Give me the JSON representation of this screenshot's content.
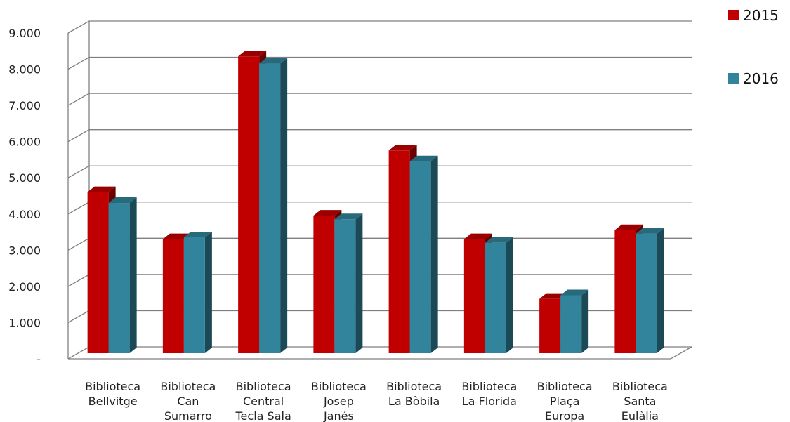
{
  "chart_data": {
    "type": "bar",
    "categories": [
      [
        "Biblioteca",
        "Bellvitge"
      ],
      [
        "Biblioteca",
        "Can",
        "Sumarro"
      ],
      [
        "Biblioteca",
        "Central",
        "Tecla Sala"
      ],
      [
        "Biblioteca",
        "Josep",
        "Janés"
      ],
      [
        "Biblioteca",
        "La Bòbila"
      ],
      [
        "Biblioteca",
        "La Florida"
      ],
      [
        "Biblioteca",
        "Plaça",
        "Europa"
      ],
      [
        "Biblioteca",
        "Santa",
        "Eulàlia"
      ]
    ],
    "series": [
      {
        "name": "2015",
        "color": "#c00000",
        "values": [
          4450,
          3150,
          8200,
          3800,
          5600,
          3150,
          1500,
          3400
        ]
      },
      {
        "name": "2016",
        "color": "#31849b",
        "values": [
          4150,
          3200,
          8000,
          3700,
          5300,
          3050,
          1600,
          3300
        ]
      }
    ],
    "y_ticks": [
      "-",
      "1.000",
      "2.000",
      "3.000",
      "4.000",
      "5.000",
      "6.000",
      "7.000",
      "8.000",
      "9.000"
    ],
    "ylim": [
      0,
      9000
    ],
    "grid": true,
    "legend_position": "top-right"
  }
}
